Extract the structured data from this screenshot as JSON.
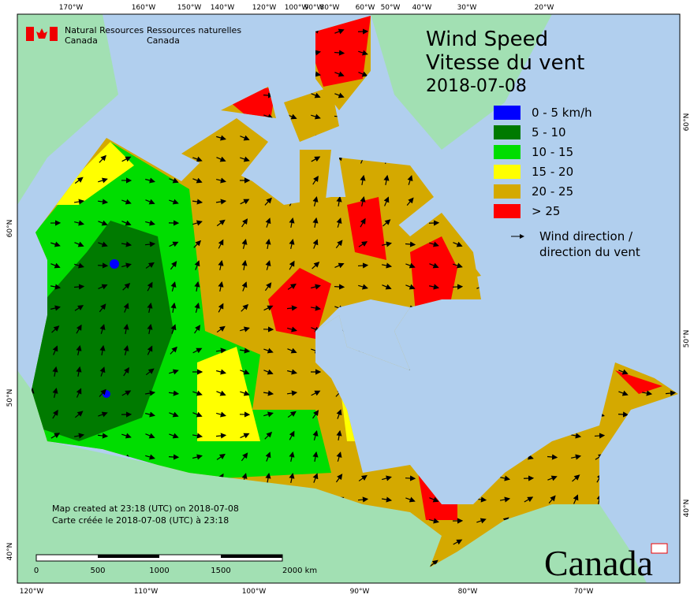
{
  "header": {
    "org_en": [
      "Natural Resources",
      "Canada"
    ],
    "org_fr": [
      "Ressources naturelles",
      "Canada"
    ]
  },
  "title": {
    "line1": "Wind Speed",
    "line2": "Vitesse du vent",
    "date": "2018-07-08"
  },
  "legend": {
    "items": [
      {
        "label": "0 - 5 km/h",
        "color": "#0000ff"
      },
      {
        "label": "5 - 10",
        "color": "#007a00"
      },
      {
        "label": "10 - 15",
        "color": "#00dd00"
      },
      {
        "label": "15 - 20",
        "color": "#ffff00"
      },
      {
        "label": "20 - 25",
        "color": "#d4a900"
      },
      {
        "label": "> 25",
        "color": "#ff0000"
      }
    ],
    "arrow_label": [
      "Wind direction /",
      "direction du vent"
    ]
  },
  "graticule": {
    "top": [
      "170°W",
      "160°W",
      "150°W",
      "140°W",
      "120°W",
      "100°W",
      "90°W",
      "80°W",
      "60°W",
      "50°W",
      "40°W",
      "30°W",
      "20°W"
    ],
    "bottom": [
      "120°W",
      "110°W",
      "100°W",
      "90°W",
      "80°W",
      "70°W"
    ],
    "left": [
      "60°N",
      "50°N",
      "40°N"
    ],
    "right": [
      "60°N",
      "50°N",
      "40°N"
    ]
  },
  "notes": [
    "Map created at 23:18 (UTC) on 2018-07-08",
    "Carte créée le 2018-07-08 (UTC) à 23:18"
  ],
  "scale_bar": {
    "labels": [
      "0",
      "500",
      "1000",
      "1500",
      "2000  km"
    ]
  },
  "wordmark": "Canada"
}
